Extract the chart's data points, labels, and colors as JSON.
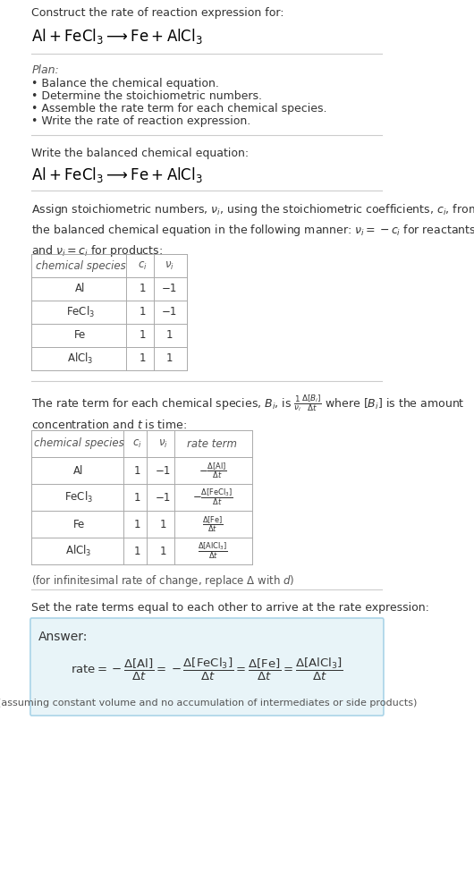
{
  "bg_color": "#ffffff",
  "text_color": "#000000",
  "gray_text": "#555555",
  "light_blue_bg": "#e8f4f8",
  "light_blue_border": "#aad4e8",
  "title_line1": "Construct the rate of reaction expression for:",
  "reaction_header": "Al + FeCl_{3}  →  Fe + AlCl_{3}",
  "divider_color": "#cccccc",
  "plan_label": "Plan:",
  "plan_bullets": [
    "• Balance the chemical equation.",
    "• Determine the stoichiometric numbers.",
    "• Assemble the rate term for each chemical species.",
    "• Write the rate of reaction expression."
  ],
  "section2_header": "Write the balanced chemical equation:",
  "balanced_eq": "Al + FeCl_{3}  →  Fe + AlCl_{3}",
  "section3_intro": "Assign stoichiometric numbers, $\\nu_i$, using the stoichiometric coefficients, $c_i$, from\nthe balanced chemical equation in the following manner: $\\nu_i = -c_i$ for reactants\nand $\\nu_i = c_i$ for products:",
  "table1_headers": [
    "chemical species",
    "$c_i$",
    "$\\nu_i$"
  ],
  "table1_rows": [
    [
      "Al",
      "1",
      "−1"
    ],
    [
      "FeCl$_3$",
      "1",
      "−1"
    ],
    [
      "Fe",
      "1",
      "1"
    ],
    [
      "AlCl$_3$",
      "1",
      "1"
    ]
  ],
  "section4_intro": "The rate term for each chemical species, $B_i$, is $\\frac{1}{\\nu_i}\\frac{\\Delta[B_i]}{\\Delta t}$ where $[B_i]$ is the amount\nconcentration and $t$ is time:",
  "table2_headers": [
    "chemical species",
    "$c_i$",
    "$\\nu_i$",
    "rate term"
  ],
  "table2_rows": [
    [
      "Al",
      "1",
      "−1",
      "$-\\frac{\\Delta[\\mathrm{Al}]}{\\Delta t}$"
    ],
    [
      "FeCl$_3$",
      "1",
      "−1",
      "$-\\frac{\\Delta[\\mathrm{FeCl_3}]}{\\Delta t}$"
    ],
    [
      "Fe",
      "1",
      "1",
      "$\\frac{\\Delta[\\mathrm{Fe}]}{\\Delta t}$"
    ],
    [
      "AlCl$_3$",
      "1",
      "1",
      "$\\frac{\\Delta[\\mathrm{AlCl_3}]}{\\Delta t}$"
    ]
  ],
  "infinitesimal_note": "(for infinitesimal rate of change, replace Δ with $d$)",
  "section5_header": "Set the rate terms equal to each other to arrive at the rate expression:",
  "answer_label": "Answer:",
  "rate_expression": "$\\mathrm{rate} = -\\frac{\\Delta[\\mathrm{Al}]}{\\Delta t} = -\\frac{\\Delta[\\mathrm{FeCl_3}]}{\\Delta t} = \\frac{\\Delta[\\mathrm{Fe}]}{\\Delta t} = \\frac{\\Delta[\\mathrm{AlCl_3}]}{\\Delta t}$",
  "assumption_note": "(assuming constant volume and no accumulation of intermediates or side products)"
}
